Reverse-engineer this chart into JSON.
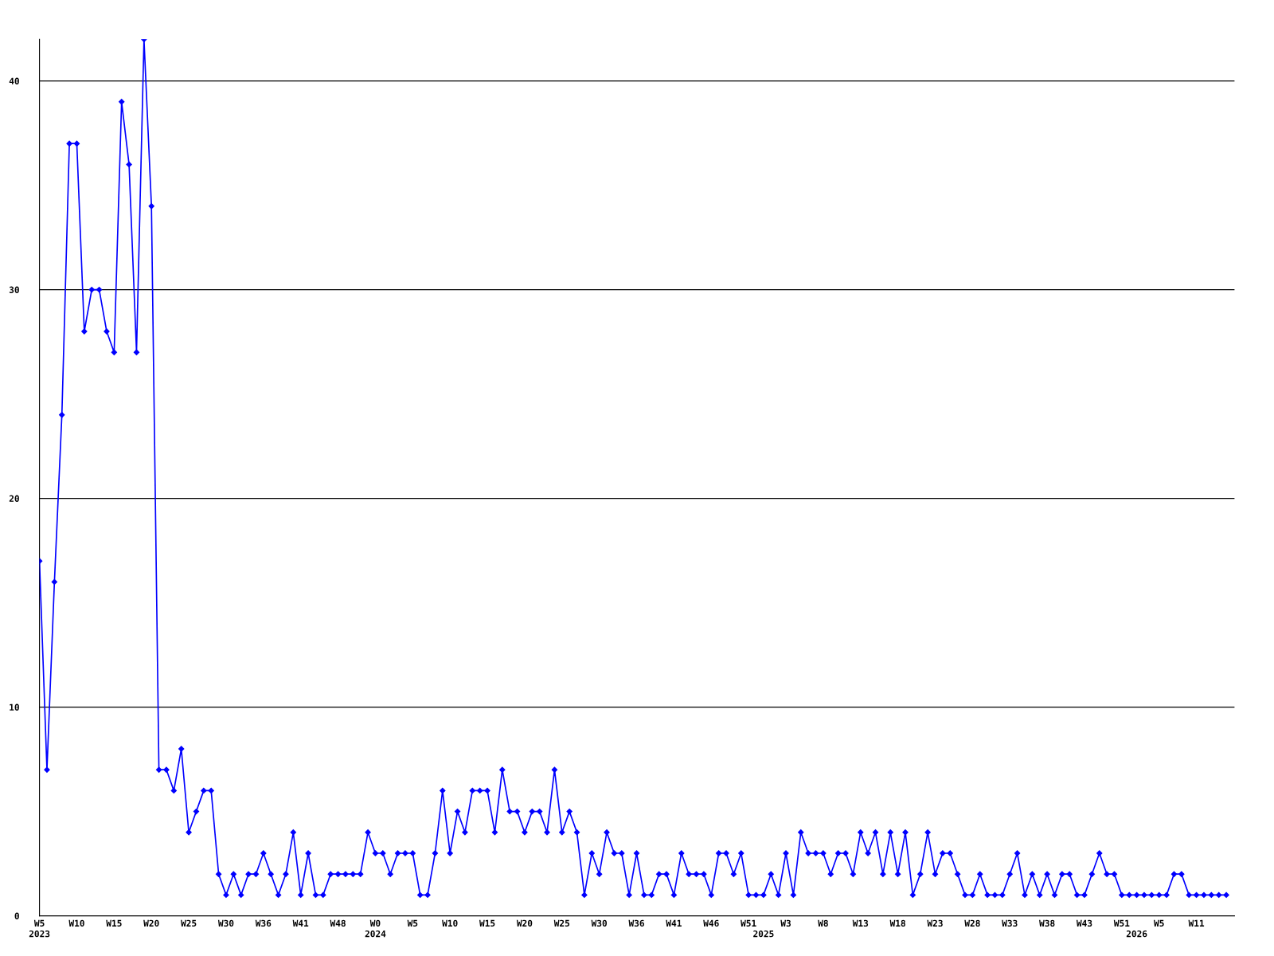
{
  "chart_data": {
    "type": "line",
    "categories": [
      "W5\n2023",
      null,
      null,
      null,
      null,
      "W10",
      null,
      null,
      null,
      null,
      "W15",
      null,
      null,
      null,
      null,
      "W20",
      null,
      null,
      null,
      null,
      "W25",
      null,
      null,
      null,
      null,
      "W30",
      null,
      null,
      null,
      null,
      "W36",
      null,
      null,
      null,
      null,
      "W41",
      null,
      null,
      null,
      null,
      "W48",
      null,
      null,
      null,
      null,
      "W0\n2024",
      null,
      null,
      null,
      null,
      "W5",
      null,
      null,
      null,
      null,
      "W10",
      null,
      null,
      null,
      null,
      "W15",
      null,
      null,
      null,
      null,
      "W20",
      null,
      null,
      null,
      null,
      "W25",
      null,
      null,
      null,
      null,
      "W30",
      null,
      null,
      null,
      null,
      "W36",
      null,
      null,
      null,
      null,
      "W41",
      null,
      null,
      null,
      null,
      "W46",
      null,
      null,
      null,
      null,
      "W51",
      null,
      "\n2025",
      null,
      null,
      "W3",
      null,
      null,
      null,
      null,
      "W8",
      null,
      null,
      null,
      null,
      "W13",
      null,
      null,
      null,
      null,
      "W18",
      null,
      null,
      null,
      null,
      "W23",
      null,
      null,
      null,
      null,
      "W28",
      null,
      null,
      null,
      null,
      "W33",
      null,
      null,
      null,
      null,
      "W38",
      null,
      null,
      null,
      null,
      "W43",
      null,
      null,
      null,
      null,
      "W51",
      null,
      "\n2026",
      null,
      null,
      "W5",
      null,
      null,
      null,
      null,
      "W11",
      null,
      null,
      null,
      null
    ],
    "series": [
      {
        "color": "#0000ff",
        "values": [
          17,
          7,
          16,
          24,
          37,
          37,
          28,
          30,
          30,
          28,
          27,
          39,
          36,
          27,
          42,
          34,
          7,
          7,
          6,
          8,
          4,
          5,
          6,
          6,
          2,
          1,
          2,
          1,
          2,
          2,
          3,
          2,
          1,
          2,
          4,
          1,
          3,
          1,
          1,
          2,
          2,
          2,
          2,
          2,
          4,
          3,
          3,
          2,
          3,
          3,
          3,
          1,
          1,
          3,
          6,
          3,
          5,
          4,
          6,
          6,
          6,
          4,
          7,
          5,
          5,
          4,
          5,
          5,
          4,
          7,
          4,
          5,
          4,
          1,
          3,
          2,
          4,
          3,
          3,
          1,
          3,
          1,
          1,
          2,
          2,
          1,
          3,
          2,
          2,
          2,
          1,
          3,
          3,
          2,
          3,
          1,
          1,
          1,
          2,
          1,
          3,
          1,
          4,
          3,
          3,
          3,
          2,
          3,
          3,
          2,
          4,
          3,
          4,
          2,
          4,
          2,
          4,
          1,
          2,
          4,
          2,
          3,
          3,
          2,
          1,
          1,
          2,
          1,
          1,
          1,
          2,
          3,
          1,
          2,
          1,
          2,
          1,
          2,
          2,
          1,
          1,
          2,
          3,
          2,
          2,
          1,
          1,
          1,
          1,
          1,
          1,
          1,
          2,
          2,
          1,
          1,
          1,
          1,
          1,
          1
        ]
      }
    ],
    "ylim": [
      0,
      42
    ],
    "yticks": [
      0,
      10,
      20,
      30,
      40
    ],
    "grid": "y",
    "marker": "diamond",
    "line_style": "solid",
    "legend": false
  }
}
